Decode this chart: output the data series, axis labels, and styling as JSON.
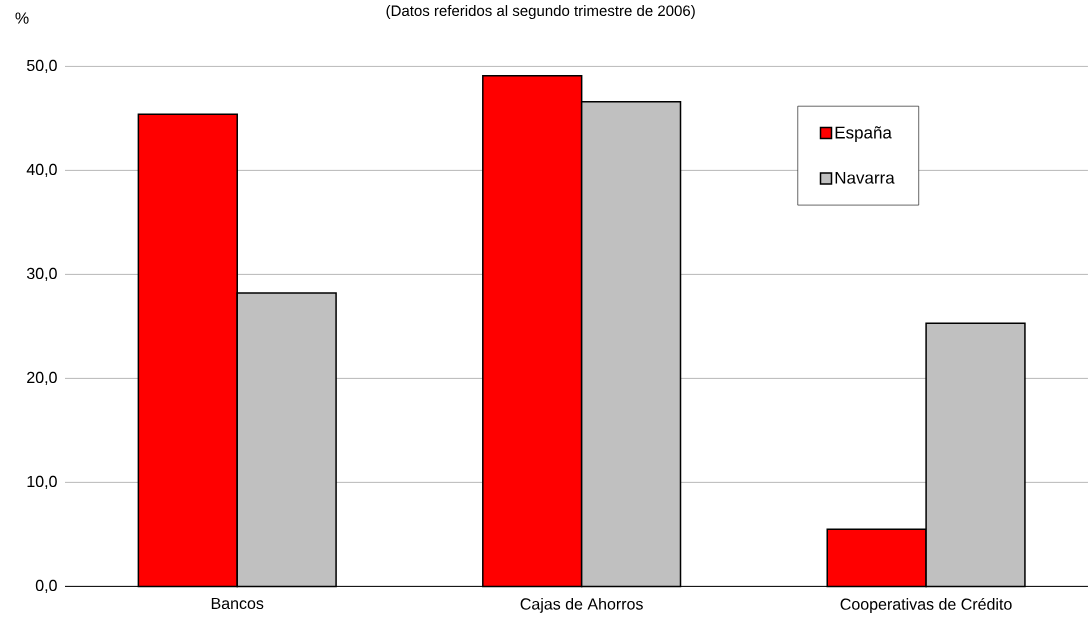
{
  "chart_data": {
    "type": "bar",
    "title": "(Datos referidos al segundo trimestre de 2006)",
    "ylabel": "%",
    "categories": [
      "Bancos",
      "Cajas de Ahorros",
      "Cooperativas de Crédito"
    ],
    "series": [
      {
        "name": "España",
        "color": "#ff0000",
        "values": [
          45.4,
          49.1,
          5.5
        ]
      },
      {
        "name": "Navarra",
        "color": "#c0c0c0",
        "values": [
          28.2,
          46.6,
          25.3
        ]
      }
    ],
    "ylim": [
      0,
      50
    ],
    "yticks": [
      {
        "value": 0,
        "label": "0,0"
      },
      {
        "value": 10,
        "label": "10,0"
      },
      {
        "value": 20,
        "label": "20,0"
      },
      {
        "value": 30,
        "label": "30,0"
      },
      {
        "value": 40,
        "label": "40,0"
      },
      {
        "value": 50,
        "label": "50,0"
      }
    ],
    "grid": "y",
    "legend": "top right"
  }
}
